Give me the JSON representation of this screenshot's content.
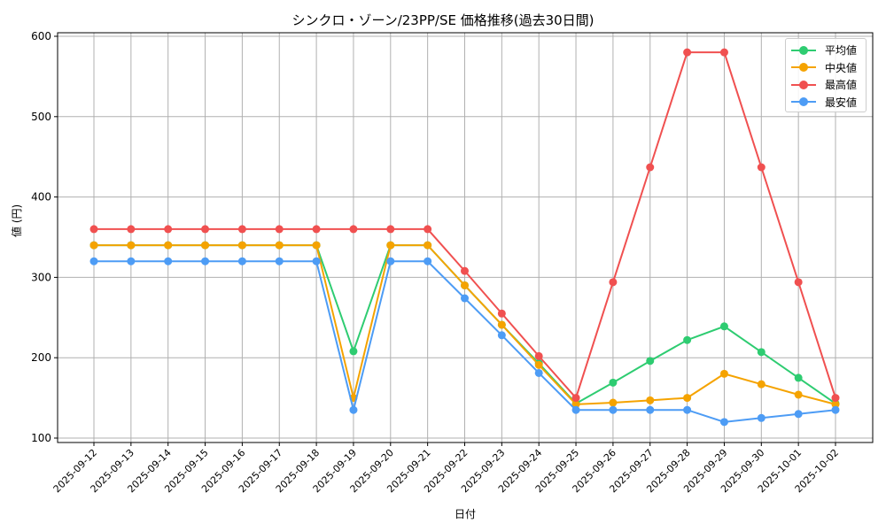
{
  "chart_data": {
    "type": "line",
    "title": "シンクロ・ゾーン/23PP/SE 価格推移(過去30日間)",
    "xlabel": "日付",
    "ylabel": "値 (円)",
    "ylim": [
      100,
      600
    ],
    "yticks": [
      100,
      200,
      300,
      400,
      500,
      600
    ],
    "grid": true,
    "legend_position": "upper right",
    "categories": [
      "2025-09-12",
      "2025-09-13",
      "2025-09-14",
      "2025-09-15",
      "2025-09-16",
      "2025-09-17",
      "2025-09-18",
      "2025-09-19",
      "2025-09-20",
      "2025-09-21",
      "2025-09-22",
      "2025-09-23",
      "2025-09-24",
      "2025-09-25",
      "2025-09-26",
      "2025-09-27",
      "2025-09-28",
      "2025-09-29",
      "2025-09-30",
      "2025-10-01",
      "2025-10-02"
    ],
    "series": [
      {
        "name": "平均値",
        "color": "#2ecc71",
        "values": [
          340,
          340,
          340,
          340,
          340,
          340,
          340,
          208,
          340,
          340,
          290,
          241,
          193,
          143,
          169,
          196,
          222,
          239,
          207,
          175,
          143
        ]
      },
      {
        "name": "中央値",
        "color": "#f5a300",
        "values": [
          340,
          340,
          340,
          340,
          340,
          340,
          340,
          150,
          340,
          340,
          290,
          241,
          191,
          142,
          144,
          147,
          150,
          180,
          167,
          154,
          142
        ]
      },
      {
        "name": "最高値",
        "color": "#f05050",
        "values": [
          360,
          360,
          360,
          360,
          360,
          360,
          360,
          360,
          360,
          360,
          308,
          255,
          202,
          150,
          294,
          437,
          580,
          580,
          437,
          294,
          150
        ]
      },
      {
        "name": "最安値",
        "color": "#4d9cf5",
        "values": [
          320,
          320,
          320,
          320,
          320,
          320,
          320,
          135,
          320,
          320,
          274,
          228,
          181,
          135,
          135,
          135,
          135,
          120,
          125,
          130,
          135
        ]
      }
    ]
  }
}
